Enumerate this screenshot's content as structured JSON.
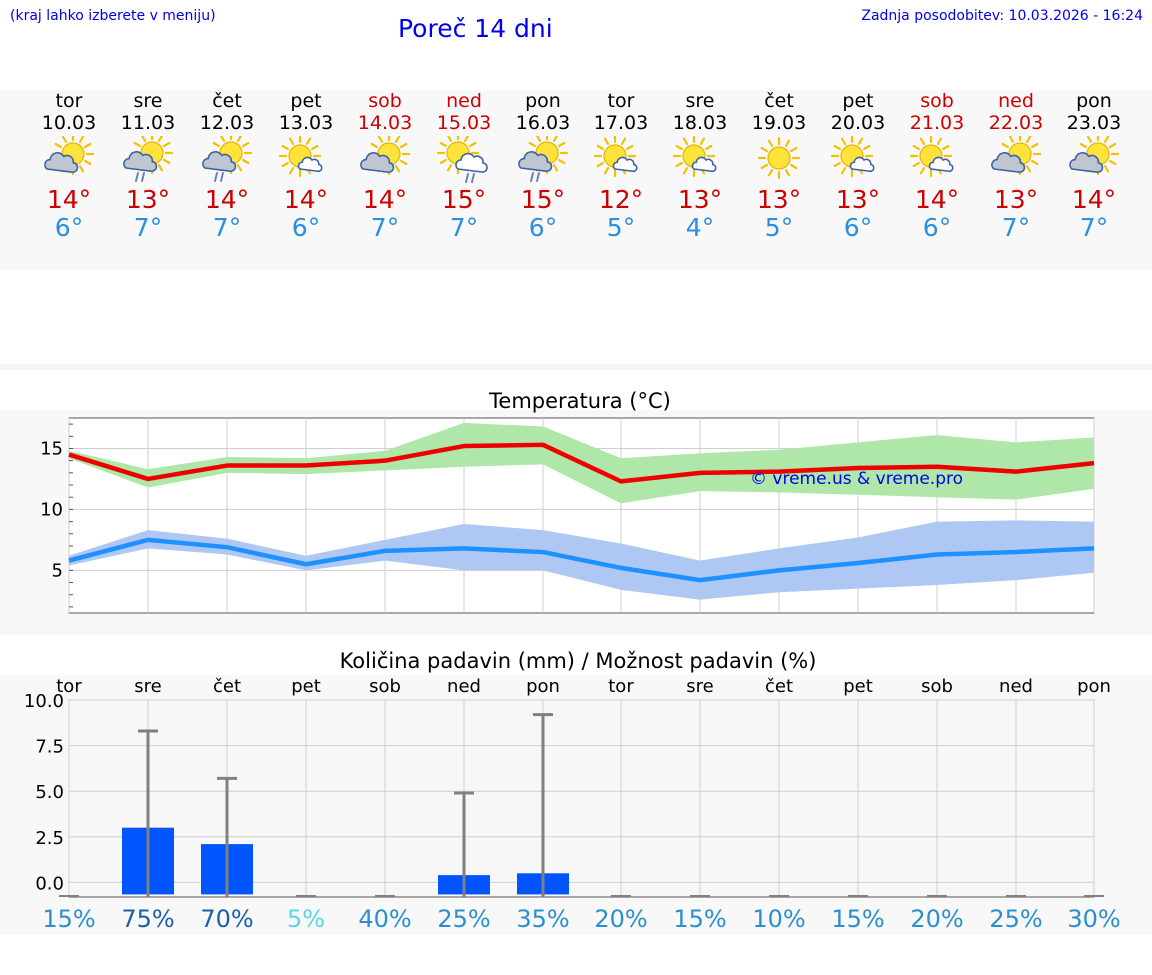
{
  "header": {
    "hint": "(kraj lahko izberete v meniju)",
    "title": "Poreč 14 dni",
    "updated": "Zadnja posodobitev: 10.03.2026 - 16:24"
  },
  "days": [
    {
      "name": "tor",
      "date": "10.03",
      "weekend": false,
      "icon": "partly-cloudy-icon",
      "tmax": "14°",
      "tmin": "6°"
    },
    {
      "name": "sre",
      "date": "11.03",
      "weekend": false,
      "icon": "cloud-sun-rain-icon",
      "tmax": "13°",
      "tmin": "7°"
    },
    {
      "name": "čet",
      "date": "12.03",
      "weekend": false,
      "icon": "cloud-sun-rain-icon",
      "tmax": "14°",
      "tmin": "7°"
    },
    {
      "name": "pet",
      "date": "13.03",
      "weekend": false,
      "icon": "sun-small-cloud-icon",
      "tmax": "14°",
      "tmin": "6°"
    },
    {
      "name": "sob",
      "date": "14.03",
      "weekend": true,
      "icon": "partly-cloudy-icon",
      "tmax": "14°",
      "tmin": "7°"
    },
    {
      "name": "ned",
      "date": "15.03",
      "weekend": true,
      "icon": "sun-cloud-rain-icon",
      "tmax": "15°",
      "tmin": "7°"
    },
    {
      "name": "pon",
      "date": "16.03",
      "weekend": false,
      "icon": "cloud-sun-rain-icon",
      "tmax": "15°",
      "tmin": "6°"
    },
    {
      "name": "tor",
      "date": "17.03",
      "weekend": false,
      "icon": "sun-small-cloud-icon",
      "tmax": "12°",
      "tmin": "5°"
    },
    {
      "name": "sre",
      "date": "18.03",
      "weekend": false,
      "icon": "sun-small-cloud-icon",
      "tmax": "13°",
      "tmin": "4°"
    },
    {
      "name": "čet",
      "date": "19.03",
      "weekend": false,
      "icon": "sun-icon",
      "tmax": "13°",
      "tmin": "5°"
    },
    {
      "name": "pet",
      "date": "20.03",
      "weekend": false,
      "icon": "sun-small-cloud-icon",
      "tmax": "13°",
      "tmin": "6°"
    },
    {
      "name": "sob",
      "date": "21.03",
      "weekend": true,
      "icon": "sun-small-cloud-icon",
      "tmax": "14°",
      "tmin": "6°"
    },
    {
      "name": "ned",
      "date": "22.03",
      "weekend": true,
      "icon": "partly-cloudy-icon",
      "tmax": "13°",
      "tmin": "7°"
    },
    {
      "name": "pon",
      "date": "23.03",
      "weekend": false,
      "icon": "partly-cloudy-icon",
      "tmax": "14°",
      "tmin": "7°"
    }
  ],
  "colors": {
    "max_line": "#ee0000",
    "max_band": "#aee7a8",
    "min_line": "#1e90ff",
    "min_band": "#aec8f3",
    "bar": "#0055ff",
    "whisker": "#808080"
  },
  "chart_data": [
    {
      "type": "line",
      "title": "Temperatura (°C)",
      "watermark": "© vreme.us & vreme.pro",
      "ylim": [
        1.5,
        17.5
      ],
      "yticks": [
        5,
        10,
        15
      ],
      "x": [
        0,
        1,
        2,
        3,
        4,
        5,
        6,
        7,
        8,
        9,
        10,
        11,
        12,
        13
      ],
      "series": [
        {
          "name": "max",
          "values": [
            14.5,
            12.5,
            13.6,
            13.6,
            14.0,
            15.2,
            15.3,
            12.3,
            13.0,
            13.1,
            13.4,
            13.5,
            13.1,
            13.8
          ],
          "band_high": [
            14.8,
            13.3,
            14.3,
            14.2,
            14.8,
            17.1,
            16.8,
            14.2,
            14.6,
            14.9,
            15.5,
            16.1,
            15.5,
            15.9
          ],
          "band_low": [
            14.2,
            11.8,
            13.0,
            12.9,
            13.2,
            13.5,
            13.7,
            10.5,
            11.5,
            11.4,
            11.2,
            11.0,
            10.8,
            11.7
          ]
        },
        {
          "name": "min",
          "values": [
            5.8,
            7.5,
            6.9,
            5.5,
            6.6,
            6.8,
            6.5,
            5.2,
            4.2,
            5.0,
            5.6,
            6.3,
            6.5,
            6.8
          ],
          "band_high": [
            6.2,
            8.3,
            7.6,
            6.2,
            7.5,
            8.8,
            8.3,
            7.2,
            5.8,
            6.8,
            7.7,
            9.0,
            9.1,
            9.0
          ],
          "band_low": [
            5.4,
            6.8,
            6.3,
            5.0,
            5.8,
            5.0,
            5.0,
            3.4,
            2.6,
            3.2,
            3.5,
            3.8,
            4.2,
            4.8
          ]
        }
      ]
    },
    {
      "type": "bar",
      "title": "Količina padavin (mm) / Možnost padavin (%)",
      "categories": [
        "tor",
        "sre",
        "čet",
        "pet",
        "sob",
        "ned",
        "pon",
        "tor",
        "sre",
        "čet",
        "pet",
        "sob",
        "ned",
        "pon"
      ],
      "ylim": [
        -0.8,
        10.0
      ],
      "yticks": [
        0.0,
        2.5,
        5.0,
        7.5,
        10.0
      ],
      "ytick_labels": [
        "0.0",
        "2.5",
        "5.0",
        "7.5",
        "10.0"
      ],
      "values": [
        0,
        3.0,
        2.1,
        0,
        0,
        0.4,
        0.5,
        0,
        0,
        0,
        0,
        0,
        0,
        0
      ],
      "whisker_max": [
        0,
        8.3,
        5.7,
        0,
        0,
        4.9,
        9.2,
        0,
        0,
        0,
        0,
        0,
        0,
        0
      ],
      "probability": [
        "15%",
        "75%",
        "70%",
        "5%",
        "40%",
        "25%",
        "35%",
        "20%",
        "15%",
        "10%",
        "15%",
        "20%",
        "25%",
        "30%"
      ],
      "probability_colors": [
        "#2b8fcf",
        "#1f5fa5",
        "#1f5fa5",
        "#5ad7e2",
        "#2b8fcf",
        "#2b8fcf",
        "#2b8fcf",
        "#2b8fcf",
        "#2b8fcf",
        "#2b8fcf",
        "#2b8fcf",
        "#2b8fcf",
        "#2b8fcf",
        "#2b8fcf"
      ]
    }
  ]
}
